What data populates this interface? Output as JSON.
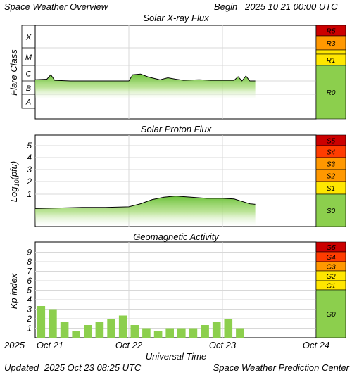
{
  "header": {
    "title": "Space Weather Overview",
    "begin_label": "Begin",
    "begin_value": "2025 10 21 00:00 UTC"
  },
  "footer": {
    "updated_label": "Updated",
    "updated_value": "2025 Oct 23 08:25 UTC",
    "credit": "Space Weather Prediction Center"
  },
  "time_axis": {
    "title": "Universal Time",
    "year": "2025",
    "ticks": [
      "Oct 21",
      "Oct 22",
      "Oct 23",
      "Oct 24"
    ]
  },
  "colors": {
    "fill_green": "#8ccf4d",
    "grid": "#d8d8d8",
    "line": "#000000",
    "scale_green": "#8ccf4d",
    "scale_yellow": "#ffe600",
    "scale_orange": "#ff9800",
    "scale_red": "#ff3c00",
    "scale_darkred": "#cc0000"
  },
  "chart_data": [
    {
      "type": "area",
      "title": "Solar X-ray Flux",
      "ylabel": "Flare Class",
      "yscale": "log",
      "ylim": [
        1e-09,
        0.001
      ],
      "class_labels": [
        "X",
        "M",
        "C",
        "B",
        "A"
      ],
      "series": [
        {
          "x": [
            "2025-10-21T00:00",
            "2025-10-21T03:00",
            "2025-10-21T04:00",
            "2025-10-21T05:00",
            "2025-10-21T09:00",
            "2025-10-21T15:00",
            "2025-10-21T21:00",
            "2025-10-22T00:00",
            "2025-10-22T01:00",
            "2025-10-22T03:00",
            "2025-10-22T05:00",
            "2025-10-22T08:00",
            "2025-10-22T10:00",
            "2025-10-22T12:00",
            "2025-10-22T14:00",
            "2025-10-22T18:00",
            "2025-10-22T21:00",
            "2025-10-23T00:00",
            "2025-10-23T03:00",
            "2025-10-23T04:00",
            "2025-10-23T05:00",
            "2025-10-23T06:00",
            "2025-10-23T07:00",
            "2025-10-23T08:25"
          ],
          "values": [
            1.2e-06,
            1.3e-06,
            2.5e-06,
            1.1e-06,
            1e-06,
            1e-06,
            1e-06,
            1e-06,
            2.5e-06,
            2.8e-06,
            1.8e-06,
            1.2e-06,
            1.6e-06,
            1.3e-06,
            1.1e-06,
            1.2e-06,
            1.1e-06,
            1.1e-06,
            1.1e-06,
            1.9e-06,
            1e-06,
            2.1e-06,
            1e-06,
            1e-06
          ]
        }
      ],
      "scale": {
        "labels": [
          "R5",
          "R3",
          "R1",
          "R0"
        ],
        "colors": [
          "scale_darkred",
          "scale_orange",
          "scale_yellow",
          "scale_green"
        ]
      }
    },
    {
      "type": "area",
      "title": "Solar Proton Flux",
      "ylabel": "Log10(pfu)",
      "ylabel_prefix": "Log",
      "ylabel_sub": "10",
      "ylabel_suffix": "(pfu)",
      "ylim": [
        -1.5,
        6
      ],
      "yticks": [
        "1",
        "2",
        "3",
        "4",
        "5"
      ],
      "series": [
        {
          "x": [
            "2025-10-21T00:00",
            "2025-10-21T06:00",
            "2025-10-21T12:00",
            "2025-10-21T18:00",
            "2025-10-22T00:00",
            "2025-10-22T03:00",
            "2025-10-22T06:00",
            "2025-10-22T09:00",
            "2025-10-22T12:00",
            "2025-10-22T16:00",
            "2025-10-22T20:00",
            "2025-10-23T00:00",
            "2025-10-23T03:00",
            "2025-10-23T05:00",
            "2025-10-23T07:00",
            "2025-10-23T08:25"
          ],
          "values": [
            -0.2,
            -0.15,
            -0.1,
            -0.1,
            -0.05,
            0.2,
            0.55,
            0.75,
            0.85,
            0.75,
            0.65,
            0.65,
            0.6,
            0.4,
            0.2,
            0.15
          ]
        }
      ],
      "scale": {
        "labels": [
          "S5",
          "S4",
          "S3",
          "S2",
          "S1",
          "S0"
        ],
        "colors": [
          "scale_darkred",
          "scale_red",
          "scale_orange",
          "scale_orange",
          "scale_yellow",
          "scale_green"
        ]
      }
    },
    {
      "type": "bar",
      "title": "Geomagnetic Activity",
      "ylabel": "Kp index",
      "ylim": [
        0,
        10
      ],
      "yticks": [
        "1",
        "2",
        "3",
        "4",
        "5",
        "6",
        "7",
        "8",
        "9"
      ],
      "bar_hours": 3,
      "x": [
        "2025-10-21T00:00",
        "2025-10-21T03:00",
        "2025-10-21T06:00",
        "2025-10-21T09:00",
        "2025-10-21T12:00",
        "2025-10-21T15:00",
        "2025-10-21T18:00",
        "2025-10-21T21:00",
        "2025-10-22T00:00",
        "2025-10-22T03:00",
        "2025-10-22T06:00",
        "2025-10-22T09:00",
        "2025-10-22T12:00",
        "2025-10-22T15:00",
        "2025-10-22T18:00",
        "2025-10-22T21:00",
        "2025-10-23T00:00",
        "2025-10-23T03:00"
      ],
      "values": [
        3.33,
        3.0,
        1.67,
        0.67,
        1.33,
        1.67,
        2.0,
        2.33,
        1.33,
        1.0,
        0.67,
        1.0,
        1.0,
        1.0,
        1.33,
        1.67,
        2.0,
        1.0
      ],
      "scale": {
        "labels": [
          "G5",
          "G4",
          "G3",
          "G2",
          "G1",
          "G0"
        ],
        "colors": [
          "scale_darkred",
          "scale_red",
          "scale_orange",
          "scale_yellow",
          "scale_yellow",
          "scale_green"
        ]
      }
    }
  ]
}
